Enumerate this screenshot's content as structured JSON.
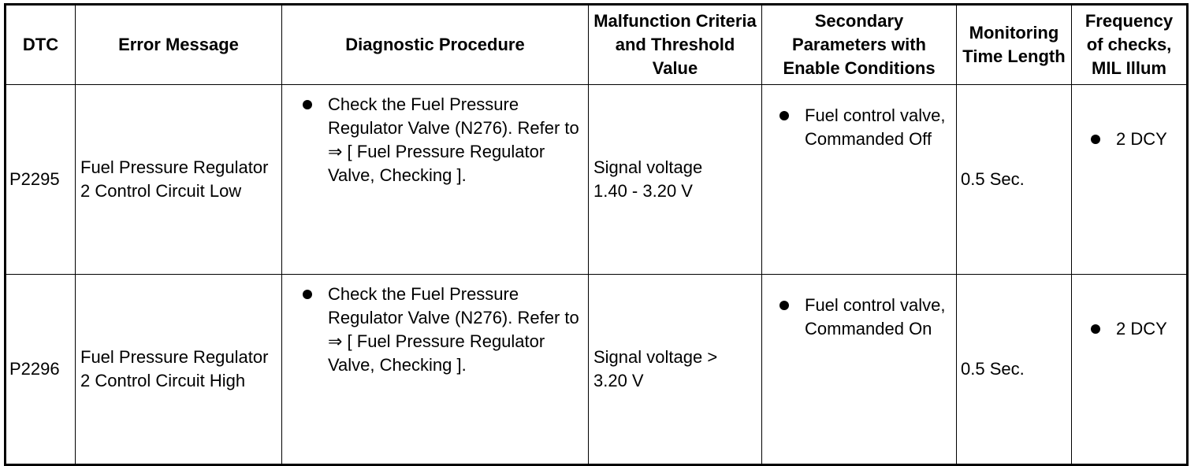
{
  "headers": [
    "DTC",
    "Error Message",
    "Diagnostic Procedure",
    "Malfunction Criteria and Threshold Value",
    "Secondary Parameters with Enable Conditions",
    "Monitoring Time Length",
    "Frequency of checks, MIL Illum"
  ],
  "rows": [
    {
      "dtc": "P2295",
      "message": "Fuel Pressure Regulator 2 Control Circuit Low",
      "procedure": "Check the Fuel Pressure Regulator Valve (N276). Refer to ⇒ [ Fuel Pressure Regulator Valve, Checking ].",
      "criteria": "Signal voltage 1.40 - 3.20 V",
      "secondary": "Fuel control valve, Commanded Off",
      "time": "0.5 Sec.",
      "frequency": "2 DCY"
    },
    {
      "dtc": "P2296",
      "message": "Fuel Pressure Regulator 2 Control Circuit High",
      "procedure": "Check the Fuel Pressure Regulator Valve (N276). Refer to ⇒ [ Fuel Pressure Regulator Valve, Checking ].",
      "criteria": "Signal voltage > 3.20 V",
      "secondary": "Fuel control valve, Commanded On",
      "time": "0.5 Sec.",
      "frequency": "2 DCY"
    }
  ]
}
